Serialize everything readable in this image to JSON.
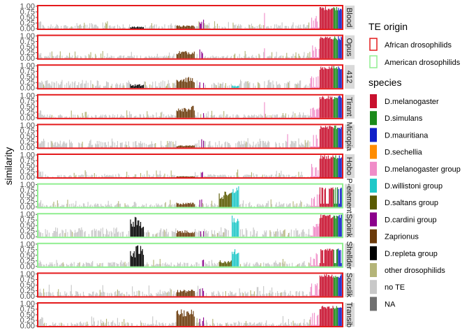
{
  "chart_data": {
    "type": "bar",
    "ylabel": "similarity",
    "ylim": [
      0,
      1
    ],
    "y_ticks": [
      "0.00",
      "0.25",
      "0.50",
      "0.75",
      "1.00"
    ],
    "n_taxa": 330,
    "panels": [
      {
        "name": "Blood",
        "origin": "African drosophilids"
      },
      {
        "name": "Opus",
        "origin": "African drosophilids"
      },
      {
        "name": "412",
        "origin": "African drosophilids"
      },
      {
        "name": "Tirant",
        "origin": "African drosophilids"
      },
      {
        "name": "Micropia",
        "origin": "African drosophilids"
      },
      {
        "name": "Hobo",
        "origin": "African drosophilids"
      },
      {
        "name": "P-element",
        "origin": "American drosophilids"
      },
      {
        "name": "Spoink",
        "origin": "American drosophilids"
      },
      {
        "name": "Shellder",
        "origin": "American drosophilids"
      },
      {
        "name": "Souslik",
        "origin": "African drosophilids"
      },
      {
        "name": "Transib",
        "origin": "African drosophilids"
      }
    ],
    "legend_origin": {
      "title": "TE origin",
      "items": [
        {
          "label": "African drosophilids",
          "color": "#e41a1c"
        },
        {
          "label": "American drosophilids",
          "color": "#90ee90"
        }
      ]
    },
    "legend_species": {
      "title": "species",
      "items": [
        {
          "label": "D.melanogaster",
          "color": "#c8102e"
        },
        {
          "label": "D.simulans",
          "color": "#1a8a1a"
        },
        {
          "label": "D.mauritiana",
          "color": "#1020c8"
        },
        {
          "label": "D.sechellia",
          "color": "#ff8c00"
        },
        {
          "label": "D.melanogaster group",
          "color": "#f08cc8"
        },
        {
          "label": "D.willistoni group",
          "color": "#20c8c8"
        },
        {
          "label": "D.saltans group",
          "color": "#5a5a00"
        },
        {
          "label": "D.cardini group",
          "color": "#8b008b"
        },
        {
          "label": "Zaprionus",
          "color": "#6b3a0a"
        },
        {
          "label": "D.repleta group",
          "color": "#000000"
        },
        {
          "label": "other drosophilids",
          "color": "#b4b478"
        },
        {
          "label": "no TE",
          "color": "#c8c8c8"
        },
        {
          "label": "NA",
          "color": "#707070"
        }
      ]
    },
    "colors": {
      "african_border": "#e41a1c",
      "american_border": "#90ee90",
      "strip_bg": "#d9d9d9"
    }
  }
}
